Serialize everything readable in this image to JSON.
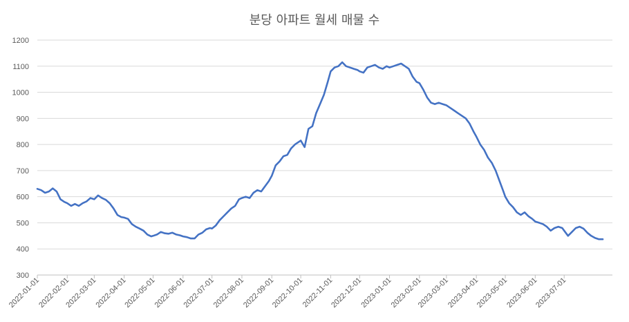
{
  "chart_data": {
    "type": "line",
    "title": "분당 아파트 월세 매물 수",
    "xlabel": "",
    "ylabel": "",
    "ylim": [
      300,
      1200
    ],
    "y_ticks": [
      300,
      400,
      500,
      600,
      700,
      800,
      900,
      1000,
      1100,
      1200
    ],
    "x_tick_labels": [
      "2022-01-01",
      "2022-02-01",
      "2022-03-01",
      "2022-04-01",
      "2022-05-01",
      "2022-06-01",
      "2022-07-01",
      "2022-08-01",
      "2022-09-01",
      "2022-10-01",
      "2022-11-01",
      "2022-12-01",
      "2023-01-01",
      "2023-02-01",
      "2023-03-01",
      "2023-04-01",
      "2023-05-01",
      "2023-06-01",
      "2023-07-01"
    ],
    "grid": true,
    "line_color": "#4472C4",
    "x_range": [
      "2022-01-01",
      "2023-08-20"
    ],
    "series": [
      {
        "name": "",
        "points": [
          [
            "2022-01-01",
            630
          ],
          [
            "2022-01-05",
            625
          ],
          [
            "2022-01-09",
            615
          ],
          [
            "2022-01-13",
            620
          ],
          [
            "2022-01-17",
            632
          ],
          [
            "2022-01-21",
            620
          ],
          [
            "2022-01-25",
            590
          ],
          [
            "2022-01-29",
            580
          ],
          [
            "2022-02-01",
            575
          ],
          [
            "2022-02-05",
            565
          ],
          [
            "2022-02-09",
            572
          ],
          [
            "2022-02-13",
            565
          ],
          [
            "2022-02-17",
            575
          ],
          [
            "2022-02-21",
            582
          ],
          [
            "2022-02-25",
            595
          ],
          [
            "2022-03-01",
            590
          ],
          [
            "2022-03-05",
            605
          ],
          [
            "2022-03-09",
            595
          ],
          [
            "2022-03-13",
            588
          ],
          [
            "2022-03-17",
            575
          ],
          [
            "2022-03-21",
            555
          ],
          [
            "2022-03-25",
            530
          ],
          [
            "2022-03-29",
            522
          ],
          [
            "2022-04-01",
            520
          ],
          [
            "2022-04-05",
            515
          ],
          [
            "2022-04-09",
            495
          ],
          [
            "2022-04-13",
            485
          ],
          [
            "2022-04-17",
            478
          ],
          [
            "2022-04-21",
            470
          ],
          [
            "2022-04-25",
            455
          ],
          [
            "2022-04-29",
            448
          ],
          [
            "2022-05-01",
            450
          ],
          [
            "2022-05-05",
            455
          ],
          [
            "2022-05-09",
            465
          ],
          [
            "2022-05-13",
            460
          ],
          [
            "2022-05-17",
            458
          ],
          [
            "2022-05-21",
            462
          ],
          [
            "2022-05-25",
            455
          ],
          [
            "2022-05-29",
            452
          ],
          [
            "2022-06-01",
            448
          ],
          [
            "2022-06-05",
            445
          ],
          [
            "2022-06-09",
            440
          ],
          [
            "2022-06-13",
            440
          ],
          [
            "2022-06-17",
            455
          ],
          [
            "2022-06-21",
            462
          ],
          [
            "2022-06-25",
            475
          ],
          [
            "2022-06-29",
            480
          ],
          [
            "2022-07-01",
            478
          ],
          [
            "2022-07-05",
            490
          ],
          [
            "2022-07-09",
            510
          ],
          [
            "2022-07-13",
            525
          ],
          [
            "2022-07-17",
            540
          ],
          [
            "2022-07-21",
            555
          ],
          [
            "2022-07-25",
            565
          ],
          [
            "2022-07-29",
            590
          ],
          [
            "2022-08-01",
            595
          ],
          [
            "2022-08-05",
            600
          ],
          [
            "2022-08-09",
            595
          ],
          [
            "2022-08-13",
            615
          ],
          [
            "2022-08-17",
            625
          ],
          [
            "2022-08-21",
            620
          ],
          [
            "2022-08-25",
            640
          ],
          [
            "2022-08-29",
            660
          ],
          [
            "2022-09-01",
            680
          ],
          [
            "2022-09-05",
            720
          ],
          [
            "2022-09-09",
            735
          ],
          [
            "2022-09-13",
            755
          ],
          [
            "2022-09-17",
            760
          ],
          [
            "2022-09-21",
            785
          ],
          [
            "2022-09-25",
            800
          ],
          [
            "2022-09-29",
            810
          ],
          [
            "2022-10-01",
            815
          ],
          [
            "2022-10-05",
            790
          ],
          [
            "2022-10-09",
            860
          ],
          [
            "2022-10-13",
            870
          ],
          [
            "2022-10-17",
            920
          ],
          [
            "2022-10-21",
            955
          ],
          [
            "2022-10-25",
            990
          ],
          [
            "2022-10-29",
            1040
          ],
          [
            "2022-11-01",
            1080
          ],
          [
            "2022-11-05",
            1095
          ],
          [
            "2022-11-09",
            1100
          ],
          [
            "2022-11-13",
            1115
          ],
          [
            "2022-11-17",
            1100
          ],
          [
            "2022-11-21",
            1095
          ],
          [
            "2022-11-25",
            1090
          ],
          [
            "2022-11-29",
            1085
          ],
          [
            "2022-12-01",
            1080
          ],
          [
            "2022-12-05",
            1075
          ],
          [
            "2022-12-09",
            1095
          ],
          [
            "2022-12-13",
            1100
          ],
          [
            "2022-12-17",
            1105
          ],
          [
            "2022-12-21",
            1095
          ],
          [
            "2022-12-25",
            1090
          ],
          [
            "2022-12-29",
            1100
          ],
          [
            "2023-01-01",
            1095
          ],
          [
            "2023-01-05",
            1100
          ],
          [
            "2023-01-09",
            1105
          ],
          [
            "2023-01-13",
            1110
          ],
          [
            "2023-01-17",
            1100
          ],
          [
            "2023-01-21",
            1090
          ],
          [
            "2023-01-25",
            1060
          ],
          [
            "2023-01-29",
            1040
          ],
          [
            "2023-02-01",
            1035
          ],
          [
            "2023-02-05",
            1010
          ],
          [
            "2023-02-09",
            980
          ],
          [
            "2023-02-13",
            960
          ],
          [
            "2023-02-17",
            955
          ],
          [
            "2023-02-21",
            960
          ],
          [
            "2023-02-25",
            955
          ],
          [
            "2023-03-01",
            950
          ],
          [
            "2023-03-05",
            940
          ],
          [
            "2023-03-09",
            930
          ],
          [
            "2023-03-13",
            920
          ],
          [
            "2023-03-17",
            910
          ],
          [
            "2023-03-21",
            900
          ],
          [
            "2023-03-25",
            880
          ],
          [
            "2023-03-29",
            850
          ],
          [
            "2023-04-01",
            830
          ],
          [
            "2023-04-05",
            800
          ],
          [
            "2023-04-09",
            780
          ],
          [
            "2023-04-13",
            750
          ],
          [
            "2023-04-17",
            730
          ],
          [
            "2023-04-21",
            700
          ],
          [
            "2023-04-25",
            660
          ],
          [
            "2023-04-29",
            620
          ],
          [
            "2023-05-01",
            600
          ],
          [
            "2023-05-05",
            575
          ],
          [
            "2023-05-09",
            560
          ],
          [
            "2023-05-13",
            540
          ],
          [
            "2023-05-17",
            530
          ],
          [
            "2023-05-21",
            540
          ],
          [
            "2023-05-25",
            525
          ],
          [
            "2023-05-29",
            515
          ],
          [
            "2023-06-01",
            505
          ],
          [
            "2023-06-05",
            500
          ],
          [
            "2023-06-09",
            495
          ],
          [
            "2023-06-13",
            485
          ],
          [
            "2023-06-17",
            470
          ],
          [
            "2023-06-21",
            480
          ],
          [
            "2023-06-25",
            485
          ],
          [
            "2023-06-29",
            480
          ],
          [
            "2023-07-01",
            470
          ],
          [
            "2023-07-05",
            450
          ],
          [
            "2023-07-09",
            465
          ],
          [
            "2023-07-13",
            480
          ],
          [
            "2023-07-17",
            485
          ],
          [
            "2023-07-21",
            478
          ],
          [
            "2023-07-25",
            462
          ],
          [
            "2023-07-29",
            450
          ],
          [
            "2023-08-02",
            442
          ],
          [
            "2023-08-06",
            437
          ],
          [
            "2023-08-10",
            437
          ]
        ]
      }
    ]
  }
}
